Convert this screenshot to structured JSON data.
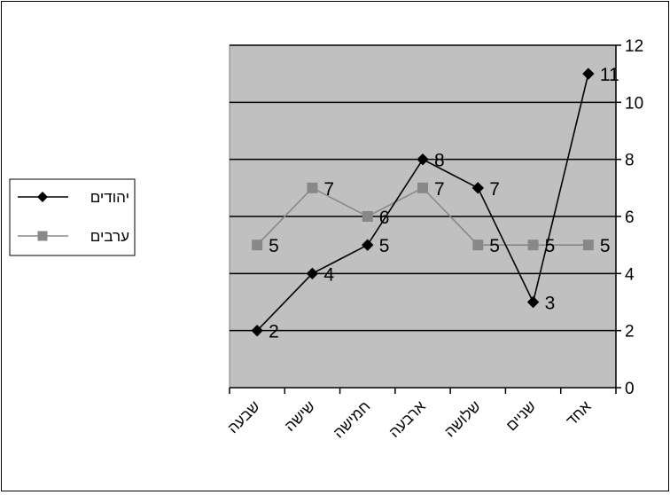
{
  "chart_data": {
    "type": "line",
    "categories": [
      "אחד",
      "שניים",
      "שלושה",
      "ארבעה",
      "חמישה",
      "שישה",
      "שבעה"
    ],
    "x_axis_reversed": true,
    "ylim": [
      0,
      12
    ],
    "yticks": [
      0,
      2,
      4,
      6,
      8,
      10,
      12
    ],
    "y_axis_position": "right",
    "grid": true,
    "plot_background": "#c0c0c0",
    "legend_position": "left",
    "series": [
      {
        "name": "יהודים",
        "values": [
          11,
          3,
          7,
          8,
          5,
          4,
          2
        ],
        "color": "#000000",
        "marker": "diamond"
      },
      {
        "name": "ערבים",
        "values": [
          5,
          5,
          5,
          7,
          6,
          7,
          5
        ],
        "color": "#888888",
        "marker": "square"
      }
    ],
    "data_labels": true
  }
}
